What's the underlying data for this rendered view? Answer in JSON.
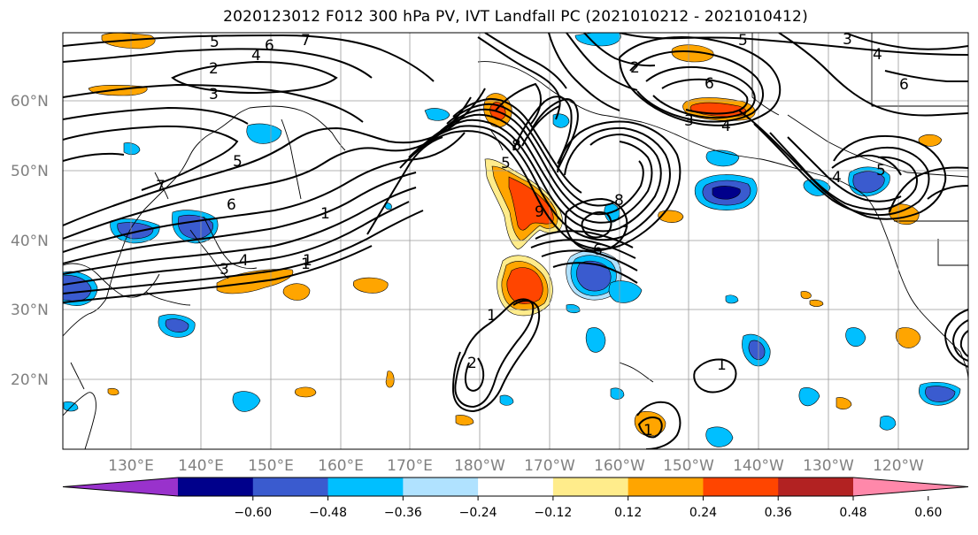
{
  "title": "2020123012 F012 300 hPa PV, IVT Landfall PC (2021010212 - 2021010412)",
  "map": {
    "lat_labels": [
      "60°N",
      "50°N",
      "40°N",
      "30°N",
      "20°N"
    ],
    "lon_labels": [
      "130°E",
      "140°E",
      "150°E",
      "160°E",
      "170°E",
      "180°W",
      "170°W",
      "160°W",
      "150°W",
      "140°W",
      "130°W",
      "120°W"
    ],
    "contour_labels": [
      "5",
      "6",
      "7",
      "4",
      "2",
      "3",
      "5",
      "6",
      "7",
      "1",
      "4",
      "3",
      "1",
      "1",
      "2",
      "1",
      "8",
      "5",
      "2",
      "6",
      "4",
      "3",
      "5",
      "4",
      "3",
      "6",
      "4",
      "1",
      "8",
      "7",
      "6",
      "9",
      "5",
      "1"
    ]
  },
  "colorbar": {
    "ticks": [
      "−0.60",
      "−0.48",
      "−0.36",
      "−0.24",
      "−0.12",
      "0.12",
      "0.24",
      "0.36",
      "0.48",
      "0.60"
    ],
    "colors": [
      "#9932cc",
      "#00008b",
      "#3a5bcf",
      "#00bfff",
      "#b0e2ff",
      "#ffffff",
      "#ffec8b",
      "#ffa500",
      "#ff4500",
      "#b22222",
      "#ff88aa"
    ]
  },
  "colors": {
    "blue_dark": "#3a5bcf",
    "blue_navy": "#00008b",
    "blue": "#00bfff",
    "blue_light": "#b0e2ff",
    "yellow": "#ffec8b",
    "orange": "#ffa500",
    "red_orange": "#ff4500"
  }
}
